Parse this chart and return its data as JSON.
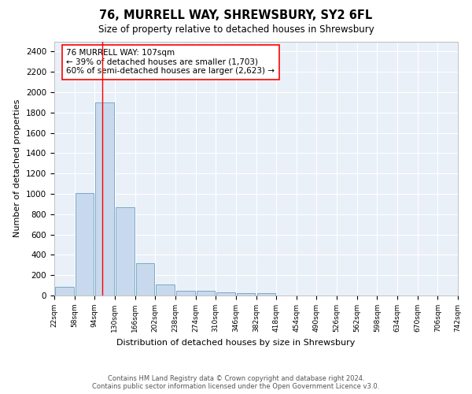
{
  "title1": "76, MURRELL WAY, SHREWSBURY, SY2 6FL",
  "title2": "Size of property relative to detached houses in Shrewsbury",
  "xlabel": "Distribution of detached houses by size in Shrewsbury",
  "ylabel": "Number of detached properties",
  "bin_labels": [
    "22sqm",
    "58sqm",
    "94sqm",
    "130sqm",
    "166sqm",
    "202sqm",
    "238sqm",
    "274sqm",
    "310sqm",
    "346sqm",
    "382sqm",
    "418sqm",
    "454sqm",
    "490sqm",
    "526sqm",
    "562sqm",
    "598sqm",
    "634sqm",
    "670sqm",
    "706sqm",
    "742sqm"
  ],
  "bar_heights": [
    85,
    1010,
    1900,
    870,
    320,
    110,
    50,
    45,
    30,
    20,
    20,
    0,
    0,
    0,
    0,
    0,
    0,
    0,
    0,
    0,
    0
  ],
  "bar_color": "#c9d9ed",
  "bar_edge_color": "#6a9fc0",
  "property_label": "76 MURRELL WAY: 107sqm",
  "annotation_line1": "← 39% of detached houses are smaller (1,703)",
  "annotation_line2": "60% of semi-detached houses are larger (2,623) →",
  "red_line_x": 107,
  "bin_edges": [
    22,
    58,
    94,
    130,
    166,
    202,
    238,
    274,
    310,
    346,
    382,
    418,
    454,
    490,
    526,
    562,
    598,
    634,
    670,
    706,
    742
  ],
  "ylim": [
    0,
    2500
  ],
  "yticks": [
    0,
    200,
    400,
    600,
    800,
    1000,
    1200,
    1400,
    1600,
    1800,
    2000,
    2200,
    2400
  ],
  "bg_color": "#eaf0f8",
  "grid_color": "#ffffff",
  "footnote": "Contains HM Land Registry data © Crown copyright and database right 2024.\nContains public sector information licensed under the Open Government Licence v3.0."
}
